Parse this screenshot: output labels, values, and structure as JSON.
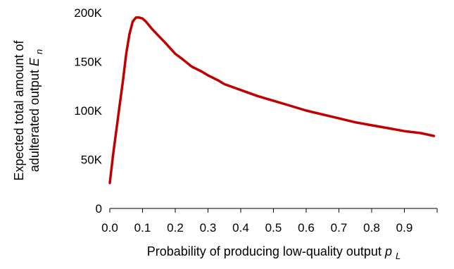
{
  "chart_data": {
    "type": "line",
    "title": "",
    "xlabel": "Probability of producing low-quality output",
    "xlabel_symbol": "p",
    "xlabel_subscript": "L",
    "ylabel_line1": "Expected total amount of",
    "ylabel_line2": "adulterated output",
    "ylabel_symbol": "E",
    "ylabel_subscript": "n",
    "xlim": [
      0.0,
      1.0
    ],
    "ylim": [
      0,
      200000
    ],
    "x_ticks": [
      0.0,
      0.1,
      0.2,
      0.3,
      0.4,
      0.5,
      0.6,
      0.7,
      0.8,
      0.9
    ],
    "x_tick_labels": [
      "0.0",
      "0.1",
      "0.2",
      "0.3",
      "0.4",
      "0.5",
      "0.6",
      "0.7",
      "0.8",
      "0.9"
    ],
    "y_ticks": [
      0,
      50000,
      100000,
      150000,
      200000
    ],
    "y_tick_labels": [
      "0",
      "50K",
      "100K",
      "150K",
      "200K"
    ],
    "grid": false,
    "legend": "none",
    "line_color": "#c00000",
    "series": [
      {
        "x": [
          0.0,
          0.01,
          0.02,
          0.03,
          0.04,
          0.05,
          0.06,
          0.07,
          0.08,
          0.09,
          0.1,
          0.11,
          0.12,
          0.13,
          0.15,
          0.17,
          0.2,
          0.22,
          0.25,
          0.28,
          0.3,
          0.33,
          0.35,
          0.4,
          0.45,
          0.5,
          0.55,
          0.6,
          0.65,
          0.7,
          0.75,
          0.8,
          0.85,
          0.9,
          0.95,
          0.99
        ],
        "y": [
          26000,
          55000,
          80000,
          105000,
          130000,
          158000,
          178000,
          191000,
          195000,
          195000,
          194000,
          191000,
          187000,
          183000,
          176000,
          169000,
          158000,
          153000,
          145000,
          140000,
          136000,
          131000,
          127000,
          121000,
          115000,
          110000,
          105000,
          100000,
          96000,
          92000,
          88000,
          85000,
          82000,
          79000,
          77000,
          74000
        ]
      }
    ]
  }
}
